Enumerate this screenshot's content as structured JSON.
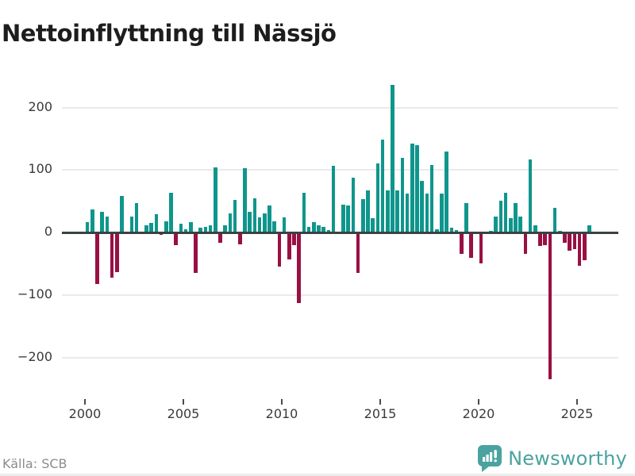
{
  "header": {
    "title": "Nettoinflyttning till Nässjö"
  },
  "footer": {
    "source": "Källa: SCB",
    "brand": "Newsworthy"
  },
  "chart_data": {
    "type": "bar",
    "title": "Nettoinflyttning till Nässjö",
    "frequency": "quarterly",
    "start_period": "2000Q1",
    "end_period": "2025Q3",
    "values": [
      17,
      37,
      -82,
      33,
      26,
      -72,
      -64,
      59,
      0,
      25,
      47,
      0,
      11,
      15,
      29,
      -4,
      18,
      64,
      -20,
      14,
      5,
      17,
      -65,
      8,
      9,
      11,
      104,
      -17,
      12,
      31,
      52,
      -19,
      103,
      33,
      54,
      24,
      31,
      43,
      18,
      -54,
      24,
      -43,
      -20,
      -113,
      64,
      9,
      17,
      12,
      9,
      4,
      107,
      0,
      44,
      43,
      87,
      -65,
      53,
      67,
      23,
      111,
      148,
      67,
      236,
      67,
      119,
      62,
      142,
      140,
      82,
      62,
      108,
      5,
      62,
      129,
      8,
      4,
      -34,
      47,
      -41,
      0,
      -50,
      0,
      3,
      26,
      51,
      64,
      23,
      47,
      25,
      -34,
      117,
      11,
      -21,
      -20,
      -235,
      39,
      3,
      -16,
      -29,
      -27,
      -53,
      -45,
      11
    ],
    "y_ticks": [
      200,
      100,
      0,
      -100,
      -200
    ],
    "x_ticks": [
      2000,
      2005,
      2010,
      2015,
      2020,
      2025
    ],
    "ylim": [
      -250,
      245
    ],
    "grid": "horizontal",
    "legend": "none",
    "positive_color": "#0f968c",
    "negative_color": "#991043",
    "source": "Källa: SCB"
  }
}
